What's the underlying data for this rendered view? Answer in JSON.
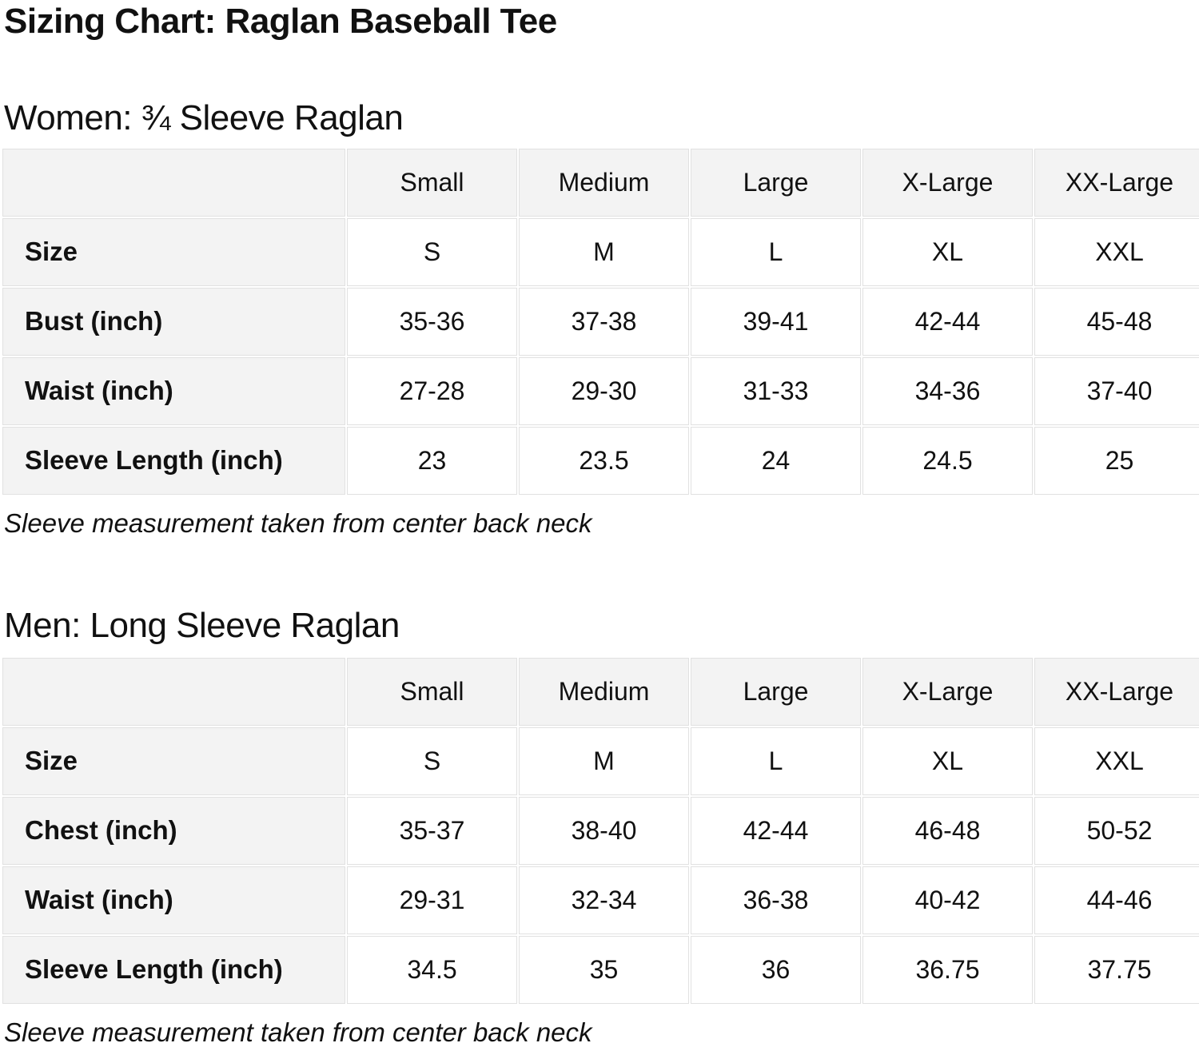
{
  "page": {
    "title": "Sizing Chart: Raglan Baseball Tee"
  },
  "colors": {
    "text": "#111111",
    "header_cell_bg": "#f3f3f3",
    "data_cell_bg": "#ffffff",
    "cell_border": "#e1e1e1"
  },
  "tables": [
    {
      "heading": "Women: ¾ Sleeve Raglan",
      "columns": [
        "",
        "Small",
        "Medium",
        "Large",
        "X-Large",
        "XX-Large"
      ],
      "rows": [
        {
          "label": "Size",
          "values": [
            "S",
            "M",
            "L",
            "XL",
            "XXL"
          ]
        },
        {
          "label": "Bust (inch)",
          "values": [
            "35-36",
            "37-38",
            "39-41",
            "42-44",
            "45-48"
          ]
        },
        {
          "label": "Waist (inch)",
          "values": [
            "27-28",
            "29-30",
            "31-33",
            "34-36",
            "37-40"
          ]
        },
        {
          "label": "Sleeve Length (inch)",
          "values": [
            "23",
            "23.5",
            "24",
            "24.5",
            "25"
          ]
        }
      ],
      "footnote": "Sleeve measurement taken from center back neck"
    },
    {
      "heading": "Men: Long Sleeve Raglan",
      "columns": [
        "",
        "Small",
        "Medium",
        "Large",
        "X-Large",
        "XX-Large"
      ],
      "rows": [
        {
          "label": "Size",
          "values": [
            "S",
            "M",
            "L",
            "XL",
            "XXL"
          ]
        },
        {
          "label": "Chest (inch)",
          "values": [
            "35-37",
            "38-40",
            "42-44",
            "46-48",
            "50-52"
          ]
        },
        {
          "label": "Waist (inch)",
          "values": [
            "29-31",
            "32-34",
            "36-38",
            "40-42",
            "44-46"
          ]
        },
        {
          "label": "Sleeve Length (inch)",
          "values": [
            "34.5",
            "35",
            "36",
            "36.75",
            "37.75"
          ]
        }
      ],
      "footnote": "Sleeve measurement taken from center back neck"
    }
  ]
}
